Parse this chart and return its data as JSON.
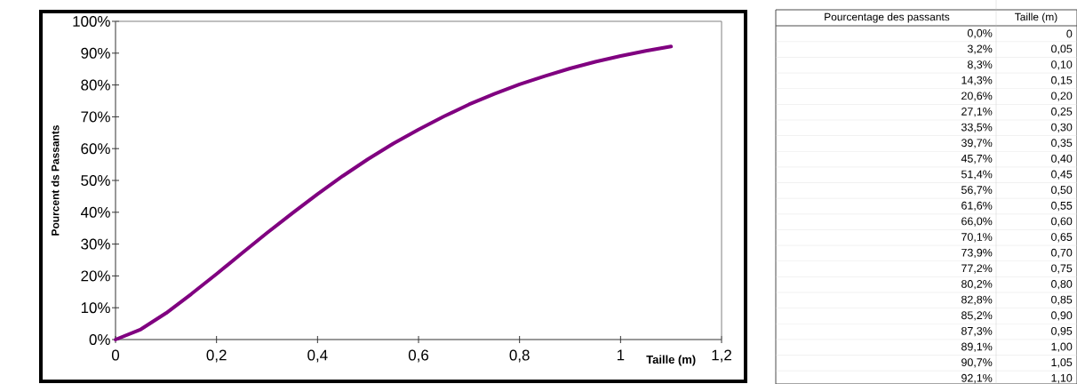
{
  "chart_data": {
    "type": "line",
    "xlabel": "Taille (m)",
    "ylabel": "Pourcent ds Passants",
    "x": [
      0,
      0.05,
      0.1,
      0.15,
      0.2,
      0.25,
      0.3,
      0.35,
      0.4,
      0.45,
      0.5,
      0.55,
      0.6,
      0.65,
      0.7,
      0.75,
      0.8,
      0.85,
      0.9,
      0.95,
      1.0,
      1.05,
      1.1
    ],
    "series": [
      {
        "color": "#800080",
        "values": [
          0,
          3.2,
          8.3,
          14.3,
          20.6,
          27.1,
          33.5,
          39.7,
          45.7,
          51.4,
          56.7,
          61.6,
          66.0,
          70.1,
          73.9,
          77.2,
          80.2,
          82.8,
          85.2,
          87.3,
          89.1,
          90.7,
          92.1
        ]
      }
    ],
    "xlim": [
      0,
      1.2
    ],
    "ylim": [
      0,
      100
    ],
    "xticks": [
      0,
      {
        "value": 0.2,
        "label": "0,2"
      },
      {
        "value": 0.4,
        "label": "0,4"
      },
      {
        "value": 0.6,
        "label": "0,6"
      },
      {
        "value": 0.8,
        "label": "0,8"
      },
      1,
      {
        "value": 1.2,
        "label": "1,2"
      }
    ],
    "yticks": [
      {
        "value": 0,
        "label": "0%"
      },
      {
        "value": 10,
        "label": "10%"
      },
      {
        "value": 20,
        "label": "20%"
      },
      {
        "value": 30,
        "label": "30%"
      },
      {
        "value": 40,
        "label": "40%"
      },
      {
        "value": 50,
        "label": "50%"
      },
      {
        "value": 60,
        "label": "60%"
      },
      {
        "value": 70,
        "label": "70%"
      },
      {
        "value": 80,
        "label": "80%"
      },
      {
        "value": 90,
        "label": "90%"
      },
      {
        "value": 100,
        "label": "100%"
      }
    ],
    "annotations": [
      "Pourcentage des passants",
      "Taille (m)",
      "0,0%",
      "0",
      "3,2%",
      "0,05",
      "8,3%",
      "0,10",
      "14,3%",
      "0,15",
      "20,6%",
      "0,20",
      "27,1%",
      "0,25",
      "33,5%",
      "0,30",
      "39,7%",
      "0,35",
      "45,7%",
      "0,40",
      "51,4%",
      "0,45",
      "56,7%",
      "0,50",
      "61,6%",
      "0,55",
      "66,0%",
      "0,60",
      "70,1%",
      "0,65",
      "73,9%",
      "0,70",
      "77,2%",
      "0,75",
      "80,2%",
      "0,80",
      "82,8%",
      "0,85",
      "85,2%",
      "0,90",
      "87,3%",
      "0,95",
      "89,1%",
      "1,00",
      "90,7%",
      "1,05",
      "92,1%",
      "1,10"
    ]
  }
}
